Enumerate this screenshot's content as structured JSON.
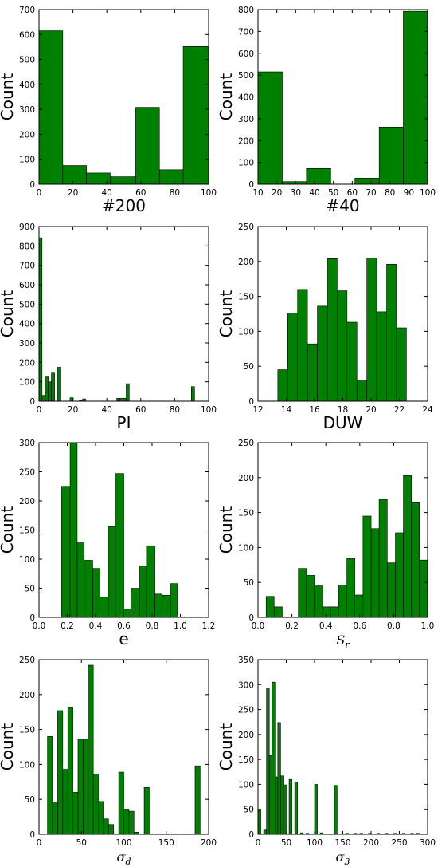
{
  "colors": {
    "bar": "#008000",
    "edge": "#000000",
    "frame": "#000000"
  },
  "chart_data": [
    {
      "type": "bar",
      "xlabel": "#200",
      "ylabel": "Count",
      "xlim": [
        0,
        100
      ],
      "ylim": [
        0,
        700
      ],
      "xticks": [
        "0",
        "20",
        "40",
        "60",
        "80",
        "100"
      ],
      "yticks": [
        "0",
        "100",
        "200",
        "300",
        "400",
        "500",
        "600",
        "700"
      ],
      "bins": [
        [
          0,
          14,
          615
        ],
        [
          14,
          28,
          75
        ],
        [
          28,
          42,
          45
        ],
        [
          42,
          57,
          30
        ],
        [
          57,
          71,
          308
        ],
        [
          71,
          85,
          58
        ],
        [
          85,
          100,
          552
        ]
      ]
    },
    {
      "type": "bar",
      "xlabel": "#40",
      "ylabel": "Count",
      "xlim": [
        10,
        100
      ],
      "ylim": [
        0,
        800
      ],
      "xticks": [
        "10",
        "20",
        "30",
        "40",
        "50",
        "60",
        "70",
        "80",
        "90",
        "100"
      ],
      "yticks": [
        "0",
        "100",
        "200",
        "300",
        "400",
        "500",
        "600",
        "700",
        "800"
      ],
      "bins": [
        [
          10,
          22.9,
          515
        ],
        [
          22.9,
          35.7,
          12
        ],
        [
          35.7,
          48.6,
          72
        ],
        [
          48.6,
          61.4,
          0
        ],
        [
          61.4,
          74.3,
          28
        ],
        [
          74.3,
          87.1,
          262
        ],
        [
          87.1,
          100,
          792
        ]
      ]
    },
    {
      "type": "bar",
      "xlabel": "PI",
      "ylabel": "Count",
      "xlim": [
        0,
        100
      ],
      "ylim": [
        0,
        900
      ],
      "xticks": [
        "0",
        "20",
        "40",
        "60",
        "80",
        "100"
      ],
      "yticks": [
        "0",
        "100",
        "200",
        "300",
        "400",
        "500",
        "600",
        "700",
        "800",
        "900"
      ],
      "bins": [
        [
          0,
          1.8,
          842
        ],
        [
          1.8,
          3.7,
          30
        ],
        [
          3.7,
          5.5,
          125
        ],
        [
          5.5,
          7.3,
          100
        ],
        [
          7.3,
          9.2,
          145
        ],
        [
          11,
          12.8,
          175
        ],
        [
          18.3,
          20.2,
          18
        ],
        [
          23.8,
          25.7,
          5
        ],
        [
          25.7,
          27.5,
          12
        ],
        [
          45.8,
          47.7,
          15
        ],
        [
          47.7,
          49.5,
          15
        ],
        [
          49.5,
          51.4,
          15
        ],
        [
          51.4,
          53.2,
          90
        ],
        [
          89.8,
          91.7,
          75
        ]
      ]
    },
    {
      "type": "bar",
      "xlabel": "DUW",
      "ylabel": "Count",
      "xlim": [
        12,
        24
      ],
      "ylim": [
        0,
        250
      ],
      "xticks": [
        "12",
        "14",
        "16",
        "18",
        "20",
        "22",
        "24"
      ],
      "yticks": [
        "0",
        "50",
        "100",
        "150",
        "200",
        "250"
      ],
      "bins": [
        [
          13.4,
          14.1,
          45
        ],
        [
          14.1,
          14.8,
          126
        ],
        [
          14.8,
          15.5,
          160
        ],
        [
          15.5,
          16.2,
          82
        ],
        [
          16.2,
          16.9,
          136
        ],
        [
          16.9,
          17.6,
          204
        ],
        [
          17.6,
          18.3,
          158
        ],
        [
          18.3,
          19.0,
          113
        ],
        [
          19.0,
          19.7,
          30
        ],
        [
          19.7,
          20.4,
          205
        ],
        [
          20.4,
          21.1,
          128
        ],
        [
          21.1,
          21.8,
          196
        ],
        [
          21.8,
          22.5,
          105
        ]
      ]
    },
    {
      "type": "bar",
      "xlabel": "e",
      "ylabel": "Count",
      "xlim": [
        0.0,
        1.2
      ],
      "ylim": [
        0,
        300
      ],
      "xticks": [
        "0.0",
        "0.2",
        "0.4",
        "0.6",
        "0.8",
        "1.0",
        "1.2"
      ],
      "yticks": [
        "0",
        "50",
        "100",
        "150",
        "200",
        "250",
        "300"
      ],
      "bins": [
        [
          0.16,
          0.22,
          225
        ],
        [
          0.22,
          0.27,
          300
        ],
        [
          0.27,
          0.32,
          128
        ],
        [
          0.32,
          0.38,
          98
        ],
        [
          0.38,
          0.43,
          84
        ],
        [
          0.43,
          0.49,
          35
        ],
        [
          0.49,
          0.54,
          156
        ],
        [
          0.54,
          0.6,
          247
        ],
        [
          0.6,
          0.65,
          14
        ],
        [
          0.65,
          0.71,
          50
        ],
        [
          0.71,
          0.76,
          88
        ],
        [
          0.76,
          0.82,
          123
        ],
        [
          0.82,
          0.87,
          40
        ],
        [
          0.87,
          0.93,
          38
        ],
        [
          0.93,
          0.98,
          58
        ]
      ]
    },
    {
      "type": "bar",
      "xlabel": "S_r",
      "ylabel": "Count",
      "xlim": [
        0.0,
        1.0
      ],
      "ylim": [
        0,
        250
      ],
      "xticks": [
        "0.0",
        "0.2",
        "0.4",
        "0.6",
        "0.8",
        "1.0"
      ],
      "yticks": [
        "0",
        "50",
        "100",
        "150",
        "200",
        "250"
      ],
      "bins": [
        [
          0.048,
          0.095,
          30
        ],
        [
          0.095,
          0.143,
          15
        ],
        [
          0.238,
          0.286,
          70
        ],
        [
          0.286,
          0.333,
          60
        ],
        [
          0.333,
          0.381,
          45
        ],
        [
          0.381,
          0.429,
          15
        ],
        [
          0.429,
          0.476,
          15
        ],
        [
          0.476,
          0.524,
          46
        ],
        [
          0.524,
          0.571,
          84
        ],
        [
          0.571,
          0.619,
          32
        ],
        [
          0.619,
          0.667,
          145
        ],
        [
          0.667,
          0.714,
          127
        ],
        [
          0.714,
          0.762,
          169
        ],
        [
          0.762,
          0.81,
          78
        ],
        [
          0.81,
          0.857,
          121
        ],
        [
          0.857,
          0.905,
          203
        ],
        [
          0.905,
          0.952,
          164
        ],
        [
          0.952,
          1.0,
          82
        ]
      ]
    },
    {
      "type": "bar",
      "xlabel": "σ_d",
      "ylabel": "Count",
      "xlim": [
        0,
        200
      ],
      "ylim": [
        0,
        250
      ],
      "xticks": [
        "0",
        "50",
        "100",
        "150",
        "200"
      ],
      "yticks": [
        "0",
        "50",
        "100",
        "150",
        "200",
        "250"
      ],
      "bins": [
        [
          10,
          16,
          140
        ],
        [
          16,
          22,
          45
        ],
        [
          22,
          28,
          177
        ],
        [
          28,
          34,
          93
        ],
        [
          34,
          40,
          181
        ],
        [
          40,
          46,
          60
        ],
        [
          46,
          52,
          136
        ],
        [
          52,
          58,
          136
        ],
        [
          58,
          64,
          242
        ],
        [
          64,
          70,
          86
        ],
        [
          70,
          76,
          47
        ],
        [
          76,
          82,
          22
        ],
        [
          82,
          88,
          14
        ],
        [
          94,
          100,
          89
        ],
        [
          100,
          106,
          36
        ],
        [
          106,
          112,
          33
        ],
        [
          112,
          118,
          3
        ],
        [
          124,
          130,
          67
        ],
        [
          130,
          136,
          0
        ],
        [
          178,
          184,
          0
        ],
        [
          184,
          190,
          98
        ]
      ]
    },
    {
      "type": "bar",
      "xlabel": "σ_3",
      "ylabel": "Count",
      "xlim": [
        0,
        300
      ],
      "ylim": [
        0,
        350
      ],
      "xticks": [
        "0",
        "50",
        "100",
        "150",
        "200",
        "250",
        "300"
      ],
      "yticks": [
        "0",
        "50",
        "100",
        "150",
        "200",
        "250",
        "300",
        "350"
      ],
      "bins": [
        [
          0,
          5,
          48
        ],
        [
          10,
          15,
          10
        ],
        [
          15,
          20,
          293
        ],
        [
          20,
          25,
          158
        ],
        [
          25,
          30,
          305
        ],
        [
          30,
          35,
          115
        ],
        [
          35,
          40,
          224
        ],
        [
          40,
          45,
          117
        ],
        [
          45,
          50,
          99
        ],
        [
          55,
          60,
          110
        ],
        [
          65,
          70,
          105
        ],
        [
          75,
          80,
          3
        ],
        [
          85,
          90,
          2
        ],
        [
          100,
          105,
          100
        ],
        [
          110,
          115,
          3
        ],
        [
          135,
          140,
          98
        ],
        [
          155,
          160,
          2
        ],
        [
          170,
          175,
          2
        ],
        [
          180,
          185,
          2
        ],
        [
          195,
          200,
          2
        ],
        [
          210,
          215,
          2
        ],
        [
          225,
          230,
          2
        ],
        [
          240,
          245,
          2
        ],
        [
          255,
          260,
          2
        ],
        [
          270,
          275,
          2
        ],
        [
          280,
          285,
          2
        ]
      ]
    }
  ]
}
